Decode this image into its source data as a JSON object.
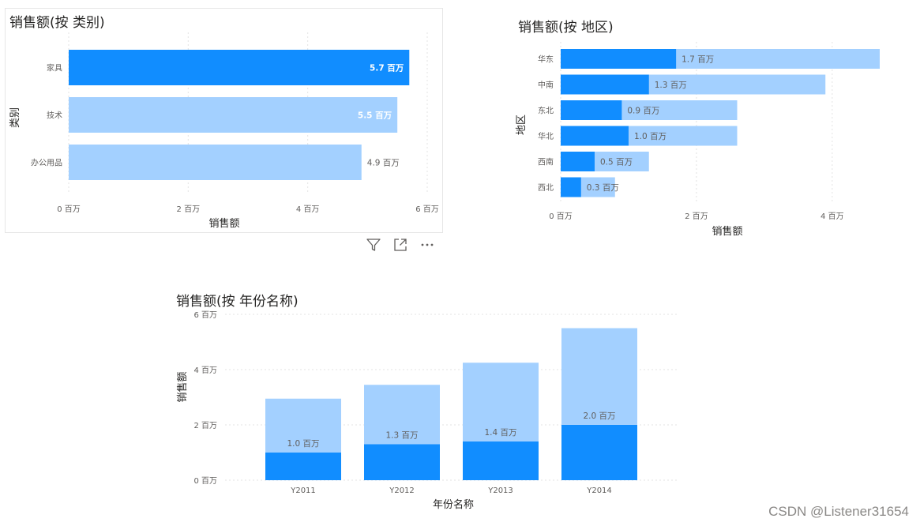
{
  "colors": {
    "dark": "#118dff",
    "light": "#a3d0ff",
    "grid": "#e3e3e3",
    "text": "#605e5c"
  },
  "chart_data": [
    {
      "id": "category",
      "type": "bar",
      "orientation": "horizontal",
      "title": "销售额(按 类别)",
      "xlabel": "销售额",
      "ylabel": "类别",
      "categories": [
        "家具",
        "技术",
        "办公用品"
      ],
      "series": [
        {
          "values": [
            5.7,
            5.5,
            4.9
          ]
        }
      ],
      "highlight": [
        true,
        false,
        false
      ],
      "data_labels": [
        "5.7 百万",
        "5.5 百万",
        "4.9 百万"
      ],
      "xlim": [
        0,
        6
      ],
      "xticks": [
        "0 百万",
        "2 百万",
        "4 百万",
        "6 百万"
      ],
      "xtick_values": [
        0,
        2,
        4,
        6
      ],
      "grid": true
    },
    {
      "id": "region",
      "type": "bar",
      "orientation": "horizontal",
      "stacked_highlight": true,
      "title": "销售额(按 地区)",
      "xlabel": "销售额",
      "ylabel": "地区",
      "categories": [
        "华东",
        "中南",
        "东北",
        "华北",
        "西南",
        "西北"
      ],
      "series": [
        {
          "values": [
            4.7,
            3.9,
            2.6,
            2.6,
            1.3,
            0.8
          ]
        },
        {
          "values": [
            1.7,
            1.3,
            0.9,
            1.0,
            0.5,
            0.3
          ]
        }
      ],
      "data_labels": [
        "1.7 百万",
        "1.3 百万",
        "0.9 百万",
        "1.0 百万",
        "0.5 百万",
        "0.3 百万"
      ],
      "xlim": [
        0,
        4.7
      ],
      "xticks": [
        "0 百万",
        "2 百万",
        "4 百万"
      ],
      "xtick_values": [
        0,
        2,
        4
      ],
      "grid": true
    },
    {
      "id": "year",
      "type": "bar",
      "orientation": "vertical",
      "stacked_highlight": true,
      "title": "销售额(按 年份名称)",
      "xlabel": "年份名称",
      "ylabel": "销售额",
      "categories": [
        "Y2011",
        "Y2012",
        "Y2013",
        "Y2014"
      ],
      "series": [
        {
          "values": [
            2.95,
            3.45,
            4.25,
            5.5
          ]
        },
        {
          "values": [
            1.0,
            1.3,
            1.4,
            2.0
          ]
        }
      ],
      "data_labels": [
        "1.0 百万",
        "1.3 百万",
        "1.4 百万",
        "2.0 百万"
      ],
      "ylim": [
        0,
        6
      ],
      "yticks": [
        "0 百万",
        "2 百万",
        "4 百万",
        "6 百万"
      ],
      "ytick_values": [
        0,
        2,
        4,
        6
      ],
      "grid": true
    }
  ],
  "header_icons": [
    "filter-icon",
    "focus-mode-icon",
    "more-options-icon"
  ],
  "watermark": "CSDN @Listener31654"
}
